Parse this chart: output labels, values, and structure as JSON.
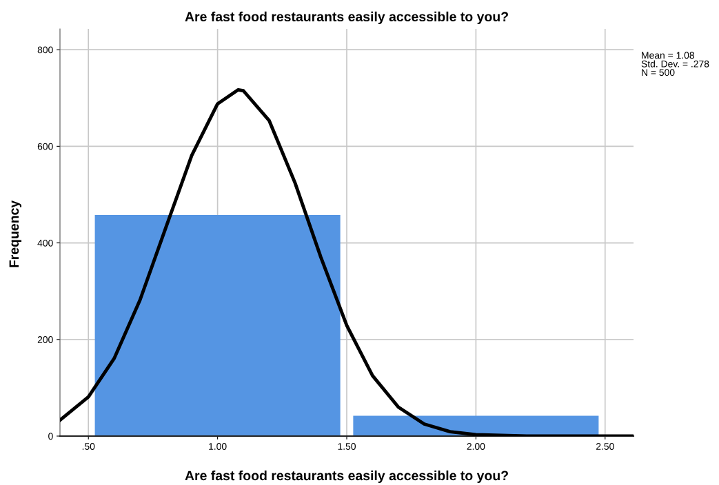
{
  "chart_data": {
    "type": "histogram",
    "title": "Are fast food restaurants easily accessible to you?",
    "xlabel": "Are fast food restaurants easily accessible to you?",
    "ylabel": "Frequency",
    "annotations": [
      "Mean = 1.08\nStd. Dev. = .278\nN = 500"
    ],
    "series": [
      {
        "bins": [
          0.5,
          1.5,
          2.5
        ],
        "values": [
          458,
          42
        ],
        "color": "#5595e3"
      },
      {
        "type": "line",
        "color": "#000000",
        "x": [
          0.39,
          0.5,
          0.6,
          0.7,
          0.8,
          0.9,
          1.0,
          1.08,
          1.1,
          1.2,
          1.3,
          1.4,
          1.5,
          1.6,
          1.7,
          1.8,
          1.9,
          2.0,
          2.2,
          2.4,
          2.61
        ],
        "values": [
          33,
          81,
          161,
          282,
          432,
          581,
          688,
          717,
          715,
          653,
          524,
          370,
          229,
          125,
          60,
          25,
          9,
          3,
          0,
          0,
          0
        ]
      }
    ],
    "xlim": [
      0.39,
      2.61
    ],
    "xticks": [
      {
        "value": 0.5,
        "label": ".50"
      },
      {
        "value": 1.0,
        "label": "1.00"
      },
      {
        "value": 1.5,
        "label": "1.50"
      },
      {
        "value": 2.0,
        "label": "2.00"
      },
      {
        "value": 2.5,
        "label": "2.50"
      }
    ],
    "ylim": [
      0,
      843
    ],
    "yticks": [
      0,
      200,
      400,
      600,
      800
    ],
    "grid": true
  }
}
